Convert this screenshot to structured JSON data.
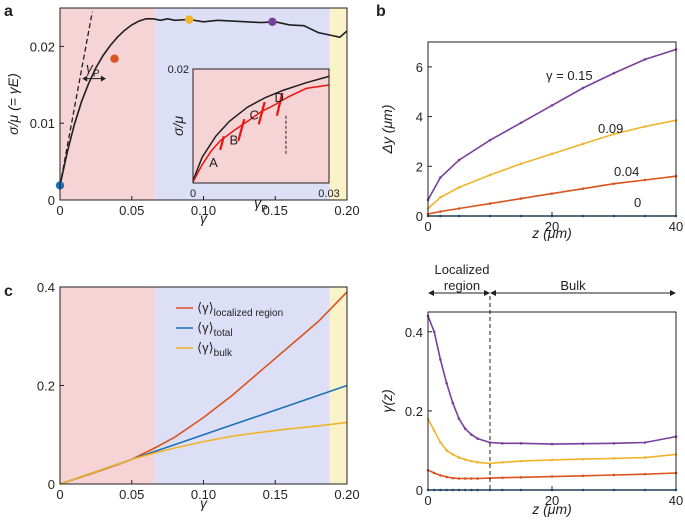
{
  "panel_labels": {
    "a": "a",
    "b": "b",
    "c": "c"
  },
  "colors": {
    "localized_region": "#f6d3d5",
    "bulk_region": "#dcdff5",
    "failure_region": "#faf2c8",
    "curve": "#1f1f1f",
    "purple": "#7a3f9c",
    "yellow": "#efb42a",
    "orange": "#d9541e",
    "blue": "#1d72b8",
    "red": "#e8150f"
  },
  "chart_data": [
    {
      "id": "a-main",
      "type": "line",
      "xlabel": "γ",
      "ylabel": "σ/μ (= γE)",
      "xlim": [
        0,
        0.2
      ],
      "ylim": [
        0,
        0.025
      ],
      "xticks": [
        "0",
        "0.05",
        "0.10",
        "0.15",
        "0.20"
      ],
      "yticks": [
        "0",
        "0.01",
        "0.02"
      ],
      "regions": [
        {
          "name": "localized",
          "from": 0,
          "to": 0.066
        },
        {
          "name": "bulk",
          "from": 0.066,
          "to": 0.188
        },
        {
          "name": "failure",
          "from": 0.188,
          "to": 0.2
        }
      ],
      "series": [
        {
          "name": "stress-strain",
          "x": [
            0,
            0.005,
            0.01,
            0.015,
            0.02,
            0.025,
            0.03,
            0.035,
            0.04,
            0.045,
            0.05,
            0.055,
            0.06,
            0.065,
            0.07,
            0.075,
            0.08,
            0.09,
            0.1,
            0.11,
            0.12,
            0.13,
            0.14,
            0.15,
            0.16,
            0.17,
            0.18,
            0.19,
            0.195,
            0.2
          ],
          "y": [
            0.0019,
            0.0062,
            0.0098,
            0.0128,
            0.0152,
            0.0172,
            0.0188,
            0.0201,
            0.0212,
            0.0221,
            0.0228,
            0.0233,
            0.0236,
            0.0236,
            0.0234,
            0.0236,
            0.0234,
            0.0235,
            0.0232,
            0.0234,
            0.0233,
            0.0232,
            0.0231,
            0.0232,
            0.0228,
            0.0227,
            0.0218,
            0.0214,
            0.0212,
            0.022
          ]
        },
        {
          "name": "elastic-line",
          "x": [
            0,
            0.0225
          ],
          "y": [
            0.0019,
            0.0245
          ]
        }
      ],
      "markers": [
        {
          "x": 0,
          "y": 0.0019,
          "color": "#1d72b8"
        },
        {
          "x": 0.038,
          "y": 0.0184,
          "color": "#d9541e"
        },
        {
          "x": 0.09,
          "y": 0.0235,
          "color": "#efb42a"
        },
        {
          "x": 0.148,
          "y": 0.0232,
          "color": "#7a3f9c"
        }
      ],
      "annotation": {
        "text": "γ",
        "sub": "P"
      }
    },
    {
      "id": "a-inset",
      "type": "line",
      "xlabel": "γ",
      "xlabel_sub": "P",
      "ylabel": "σ/μ",
      "xlim": [
        0,
        0.03
      ],
      "ylim": [
        0,
        0.02
      ],
      "xticks": [
        "0",
        "0.03"
      ],
      "yticks": [
        "0.02"
      ],
      "labels": [
        "A",
        "B",
        "C",
        "D"
      ],
      "series": [
        {
          "name": "envelope",
          "x": [
            0,
            0.002,
            0.005,
            0.008,
            0.012,
            0.016,
            0.02,
            0.025,
            0.03
          ],
          "y": [
            0.0004,
            0.0045,
            0.0082,
            0.0108,
            0.0133,
            0.015,
            0.0163,
            0.0176,
            0.0187
          ]
        },
        {
          "name": "unloading",
          "x": [
            0,
            0.002,
            0.004,
            0.006,
            0.009,
            0.012,
            0.015,
            0.018,
            0.021,
            0.025,
            0.03
          ],
          "y": [
            0.0002,
            0.0032,
            0.0056,
            0.0074,
            0.0092,
            0.0108,
            0.0125,
            0.0137,
            0.0151,
            0.0166,
            0.0172
          ]
        }
      ]
    },
    {
      "id": "b-top",
      "type": "line",
      "xlabel": "z (μm)",
      "ylabel": "Δy (μm)",
      "xlim": [
        0,
        40
      ],
      "ylim": [
        0,
        7
      ],
      "xticks": [
        "0",
        "20",
        "40"
      ],
      "yticks": [
        "0",
        "2",
        "4",
        "6"
      ],
      "x": [
        0,
        2,
        5,
        10,
        15,
        20,
        25,
        30,
        35,
        40
      ],
      "series": [
        {
          "name": "γ = 0.15",
          "color": "#7a3f9c",
          "values": [
            0.65,
            1.55,
            2.25,
            3.05,
            3.75,
            4.45,
            5.15,
            5.75,
            6.3,
            6.7
          ]
        },
        {
          "name": "0.09",
          "color": "#efb42a",
          "values": [
            0.3,
            0.75,
            1.15,
            1.65,
            2.1,
            2.5,
            2.9,
            3.3,
            3.6,
            3.85
          ]
        },
        {
          "name": "0.04",
          "color": "#d9541e",
          "values": [
            0.08,
            0.18,
            0.3,
            0.5,
            0.7,
            0.9,
            1.1,
            1.3,
            1.45,
            1.6
          ]
        },
        {
          "name": "0",
          "color": "#1d72b8",
          "values": [
            0,
            0,
            0,
            0,
            0,
            0,
            0,
            0,
            0,
            0
          ]
        }
      ]
    },
    {
      "id": "c",
      "type": "line",
      "xlabel": "γ",
      "ylabel": "",
      "xlim": [
        0,
        0.2
      ],
      "ylim": [
        0,
        0.4
      ],
      "xticks": [
        "0",
        "0.05",
        "0.10",
        "0.15",
        "0.20"
      ],
      "yticks": [
        "0",
        "0.2",
        "0.4"
      ],
      "x": [
        0,
        0.02,
        0.04,
        0.05,
        0.066,
        0.08,
        0.1,
        0.12,
        0.14,
        0.16,
        0.18,
        0.2
      ],
      "series": [
        {
          "name": "⟨γ⟩",
          "sub": "localized region",
          "color": "#d9541e",
          "values": [
            0,
            0.019,
            0.039,
            0.05,
            0.073,
            0.095,
            0.135,
            0.18,
            0.23,
            0.28,
            0.33,
            0.39
          ]
        },
        {
          "name": "⟨γ⟩",
          "sub": "total",
          "color": "#1d72b8",
          "values": [
            0,
            0.02,
            0.04,
            0.05,
            0.066,
            0.08,
            0.1,
            0.12,
            0.14,
            0.16,
            0.18,
            0.2
          ]
        },
        {
          "name": "⟨γ⟩",
          "sub": "bulk",
          "color": "#efb42a",
          "values": [
            0,
            0.02,
            0.04,
            0.05,
            0.063,
            0.073,
            0.086,
            0.097,
            0.105,
            0.112,
            0.118,
            0.125
          ]
        }
      ]
    },
    {
      "id": "b-bottom",
      "type": "line",
      "xlabel": "z (μm)",
      "ylabel": "γ(z)",
      "xlim": [
        0,
        40
      ],
      "ylim": [
        0,
        0.45
      ],
      "xticks": [
        "0",
        "20",
        "40"
      ],
      "yticks": [
        "0",
        "0.2",
        "0.4"
      ],
      "annotations": {
        "localized": "Localized region",
        "bulk": "Bulk",
        "divider_z": 10
      },
      "x": [
        0,
        1,
        2,
        3,
        4,
        5,
        6,
        7,
        8,
        10,
        12,
        15,
        20,
        25,
        30,
        35,
        40
      ],
      "series": [
        {
          "name": "0.15",
          "color": "#7a3f9c",
          "values": [
            0.44,
            0.4,
            0.33,
            0.27,
            0.22,
            0.18,
            0.155,
            0.14,
            0.13,
            0.12,
            0.118,
            0.118,
            0.116,
            0.117,
            0.118,
            0.12,
            0.135
          ]
        },
        {
          "name": "0.09",
          "color": "#efb42a",
          "values": [
            0.18,
            0.15,
            0.12,
            0.1,
            0.09,
            0.082,
            0.077,
            0.073,
            0.07,
            0.067,
            0.07,
            0.073,
            0.076,
            0.078,
            0.08,
            0.082,
            0.09
          ]
        },
        {
          "name": "0.04",
          "color": "#d9541e",
          "values": [
            0.05,
            0.043,
            0.037,
            0.033,
            0.03,
            0.029,
            0.029,
            0.029,
            0.029,
            0.03,
            0.031,
            0.032,
            0.034,
            0.036,
            0.038,
            0.04,
            0.043
          ]
        },
        {
          "name": "0",
          "color": "#1d72b8",
          "values": [
            0,
            0,
            0,
            0,
            0,
            0,
            0,
            0,
            0,
            0,
            0,
            0,
            0,
            0,
            0,
            0,
            0
          ]
        }
      ]
    }
  ]
}
